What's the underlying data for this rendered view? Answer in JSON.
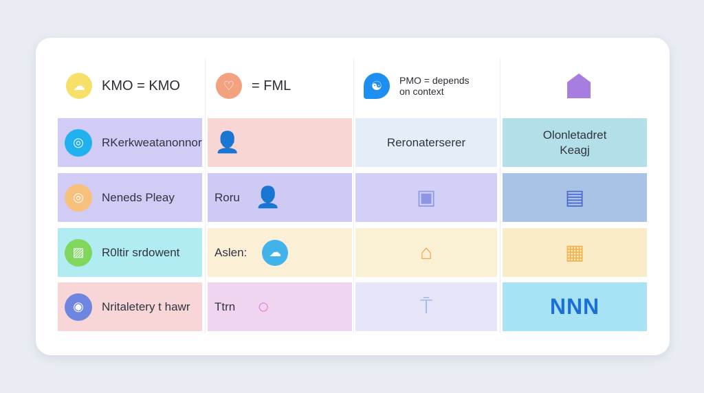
{
  "header": [
    {
      "label": "KMO = KMO",
      "icon": "cloud-icon",
      "color": "#f6e06a"
    },
    {
      "label": "= FML",
      "icon": "heart-icon",
      "color": "#f2a27e"
    },
    {
      "label": "PMO = depends on context",
      "icon": "chat-bubble-icon",
      "color": "#1e8ff0"
    },
    {
      "label": "",
      "icon": "house-keyhole-icon",
      "color": "#a77de0"
    }
  ],
  "rows": [
    {
      "cells": [
        {
          "text": "RKerkweatanonnorfrn",
          "bg": "#d0ccf5",
          "icon": "target-icon",
          "ic": "#1fb1f0"
        },
        {
          "text": "",
          "bg": "#f8d6d4",
          "icon": "person-icon",
          "ic": "#e88a62"
        },
        {
          "text": "Reronaterserer",
          "bg": "#e3eef8"
        },
        {
          "text": "Olonletadret Keagj",
          "bg": "#b3dfe9"
        }
      ]
    },
    {
      "cells": [
        {
          "text": "Neneds Pleay",
          "bg": "#d0ccf5",
          "icon": "target-icon",
          "ic": "#f7c07c"
        },
        {
          "text": "Roru",
          "bg": "#cfcaf5",
          "icon": "person-icon",
          "ic": "#5b78d8"
        },
        {
          "text": "",
          "bg": "#d2d0f7",
          "icon": "user-square-icon",
          "ic": "#8e95e6"
        },
        {
          "text": "",
          "bg": "#a9c3e6",
          "icon": "documents-icon",
          "ic": "#4b67c9"
        }
      ]
    },
    {
      "cells": [
        {
          "text": "R0ltir srdowent",
          "bg": "#b0ecf2",
          "icon": "image-icon",
          "ic": "#7fd75e"
        },
        {
          "text": "Aslen:",
          "bg": "#fbf0d6",
          "icon": "cloud-icon",
          "ic": "#3fb3ea"
        },
        {
          "text": "",
          "bg": "#faf0d4",
          "icon": "home-icon",
          "ic": "#f5a44a"
        },
        {
          "text": "",
          "bg": "#fbecc8",
          "icon": "calendar-icon",
          "ic": "#f1b24e"
        }
      ]
    },
    {
      "cells": [
        {
          "text": "Nritaletery t hawr",
          "bg": "#f8d6d8",
          "icon": "camera-icon",
          "ic": "#6e86df"
        },
        {
          "text": "Ttrn",
          "bg": "#efd5ef",
          "icon": "user-icon",
          "ic": "#d78ad6"
        },
        {
          "text": "",
          "bg": "#e6e6f8",
          "icon": "figure-icon",
          "ic": "#9bb6e8"
        },
        {
          "text": "NNN",
          "bg": "#a8e3f5"
        }
      ]
    }
  ]
}
